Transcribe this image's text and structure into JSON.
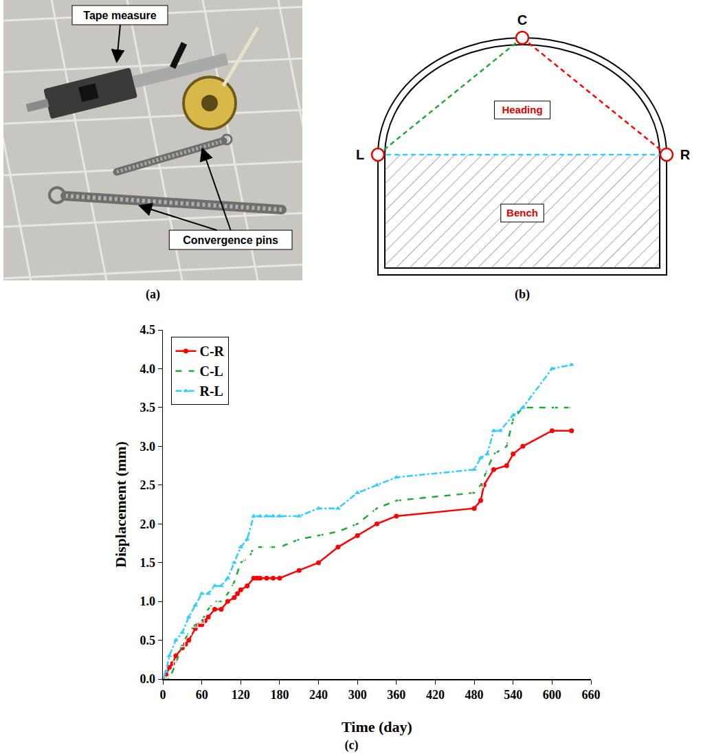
{
  "photo": {
    "labels": [
      "Tape measure",
      "Convergence pins"
    ],
    "caption": "(a)"
  },
  "diagram": {
    "points": [
      "C",
      "L",
      "R"
    ],
    "regions": [
      "Heading",
      "Bench"
    ],
    "caption": "(b)"
  },
  "chart_data": {
    "type": "line",
    "caption": "(c)",
    "x_label": "Time (day)",
    "y_label": "Displacement (mm)",
    "xlim": [
      0,
      660
    ],
    "xticks": [
      0,
      60,
      120,
      180,
      240,
      300,
      360,
      420,
      480,
      540,
      600,
      660
    ],
    "ylim": [
      0,
      4.5
    ],
    "yticks": [
      {
        "value": 0,
        "label": "0.0"
      },
      0.5,
      {
        "value": 1,
        "label": "1.0"
      },
      1.5,
      {
        "value": 2,
        "label": "2.0"
      },
      2.5,
      {
        "value": 3,
        "label": "3.0"
      },
      3.5,
      {
        "value": 4,
        "label": "4.0"
      },
      4.5
    ],
    "grid": false,
    "legend": "top left",
    "series": [
      {
        "name": "C-R",
        "color": "#ff0000",
        "marker": "circle",
        "line_style": "solid",
        "x": [
          0,
          5,
          10,
          15,
          20,
          30,
          35,
          40,
          50,
          55,
          60,
          65,
          70,
          80,
          90,
          100,
          110,
          115,
          120,
          130,
          140,
          145,
          150,
          160,
          170,
          180,
          210,
          240,
          270,
          300,
          330,
          360,
          480,
          490,
          495,
          510,
          530,
          540,
          555,
          600,
          630
        ],
        "values": [
          0,
          0.05,
          0.15,
          0.2,
          0.3,
          0.4,
          0.45,
          0.5,
          0.65,
          0.7,
          0.7,
          0.75,
          0.8,
          0.9,
          0.9,
          1.0,
          1.05,
          1.1,
          1.15,
          1.2,
          1.3,
          1.3,
          1.3,
          1.3,
          1.3,
          1.3,
          1.4,
          1.5,
          1.7,
          1.85,
          2.0,
          2.1,
          2.2,
          2.3,
          2.5,
          2.7,
          2.75,
          2.9,
          3.0,
          3.2,
          3.2
        ]
      },
      {
        "name": "C-L",
        "color": "#22a83a",
        "marker": "square-open",
        "line_style": "dash",
        "x": [
          0,
          10,
          20,
          30,
          40,
          50,
          60,
          70,
          80,
          90,
          100,
          110,
          120,
          130,
          135,
          140,
          150,
          160,
          170,
          180,
          210,
          240,
          270,
          300,
          330,
          360,
          480,
          490,
          500,
          510,
          530,
          540,
          555,
          600,
          630
        ],
        "values": [
          0,
          0,
          0.2,
          0.45,
          0.6,
          0.7,
          0.75,
          0.9,
          1.0,
          1.0,
          1.1,
          1.25,
          1.5,
          1.55,
          1.6,
          1.7,
          1.7,
          1.7,
          1.7,
          1.7,
          1.8,
          1.85,
          1.9,
          2.0,
          2.2,
          2.3,
          2.4,
          2.5,
          2.7,
          2.9,
          3.0,
          3.35,
          3.5,
          3.5,
          3.5
        ]
      },
      {
        "name": "R-L",
        "color": "#33ccff",
        "marker": "triangle-up",
        "line_style": "dashdot",
        "x": [
          0,
          5,
          10,
          20,
          30,
          40,
          50,
          60,
          70,
          80,
          90,
          100,
          110,
          120,
          130,
          140,
          150,
          160,
          170,
          180,
          210,
          240,
          270,
          300,
          330,
          360,
          480,
          490,
          500,
          510,
          520,
          540,
          555,
          600,
          630
        ],
        "values": [
          0,
          0.1,
          0.3,
          0.5,
          0.6,
          0.8,
          0.95,
          1.1,
          1.1,
          1.2,
          1.2,
          1.3,
          1.5,
          1.7,
          1.8,
          2.1,
          2.1,
          2.1,
          2.1,
          2.1,
          2.1,
          2.2,
          2.2,
          2.4,
          2.5,
          2.6,
          2.7,
          2.85,
          2.9,
          3.2,
          3.2,
          3.4,
          3.5,
          4.0,
          4.05
        ]
      }
    ]
  }
}
